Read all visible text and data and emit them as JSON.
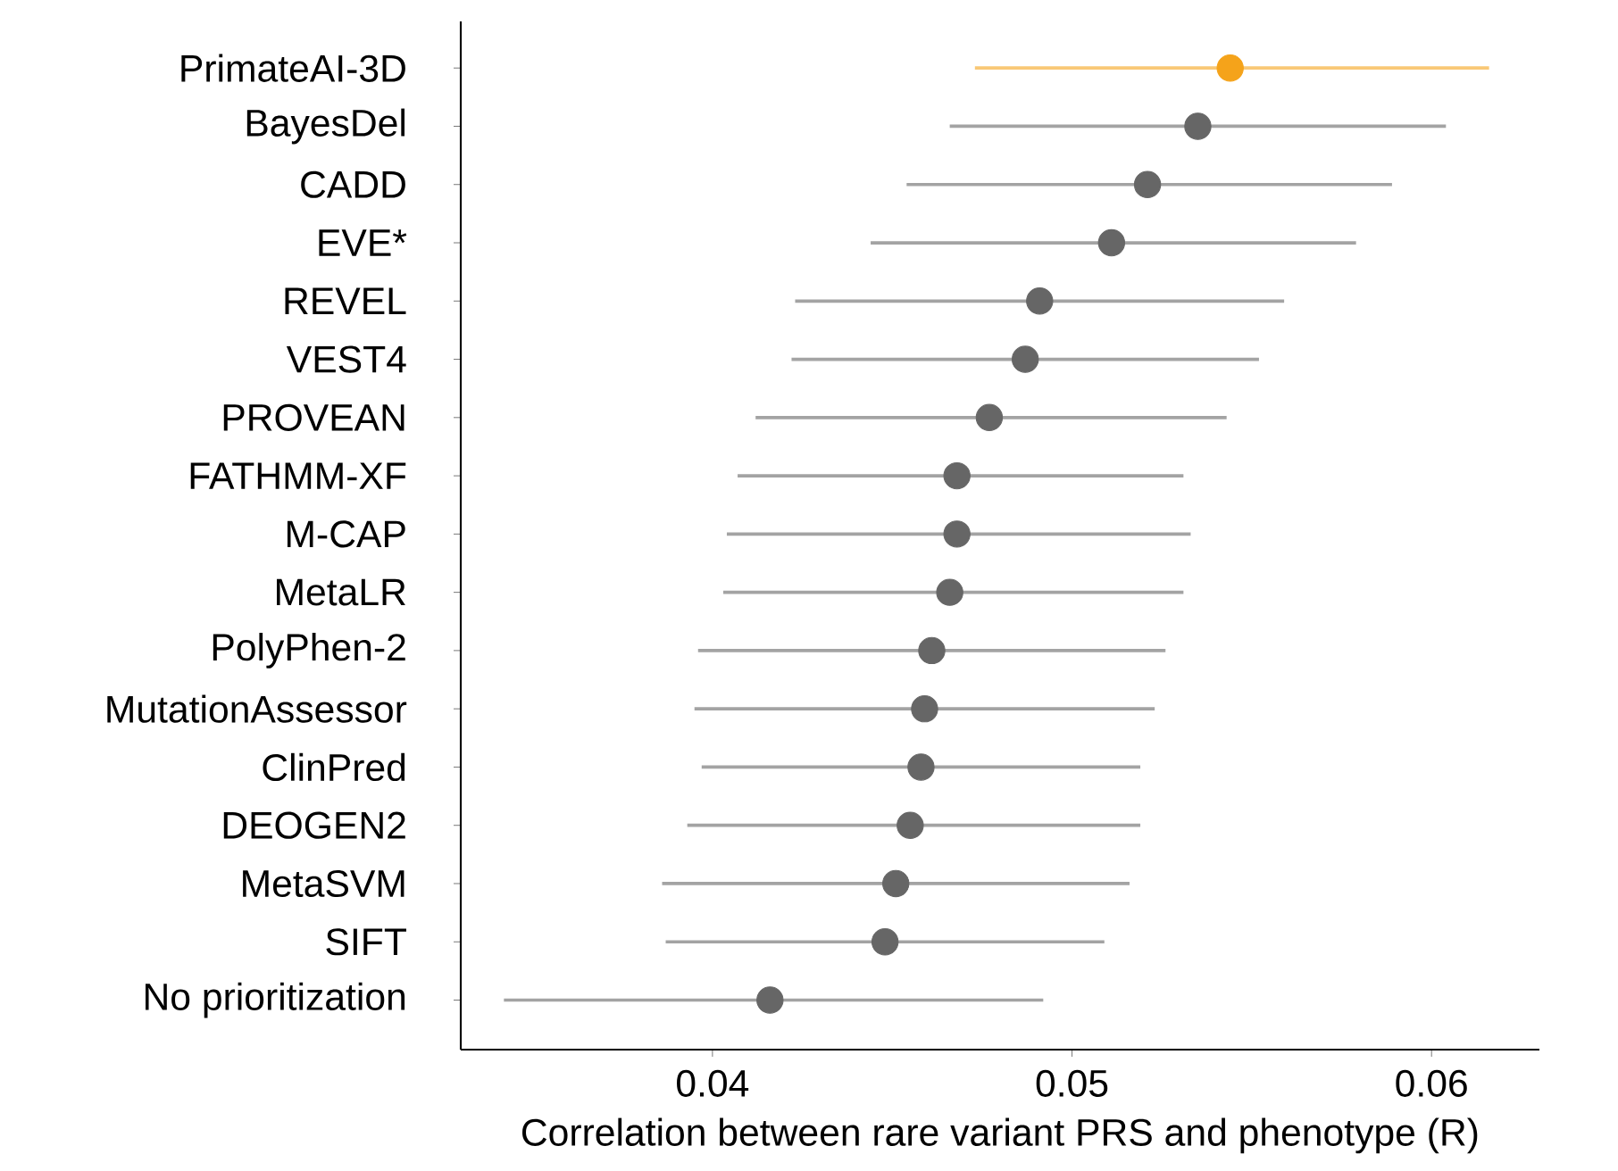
{
  "chart_data": {
    "type": "scatter",
    "orientation": "horizontal",
    "xlabel": "Correlation between rare variant PRS and phenotype (R)",
    "categories": [
      "PrimateAI-3D",
      "BayesDel",
      "CADD",
      "EVE*",
      "REVEL",
      "VEST4",
      "PROVEAN",
      "FATHMM-XF",
      "M-CAP",
      "MetaLR",
      "PolyPhen-2",
      "MutationAssessor",
      "ClinPred",
      "DEOGEN2",
      "MetaSVM",
      "SIFT",
      "No prioritization"
    ],
    "values": [
      0.0544,
      0.0535,
      0.0521,
      0.0511,
      0.0491,
      0.0487,
      0.0477,
      0.0468,
      0.0468,
      0.0466,
      0.0461,
      0.0459,
      0.0458,
      0.0455,
      0.0451,
      0.0448,
      0.0416
    ],
    "errors": [
      [
        0.0473,
        0.0616
      ],
      [
        0.0466,
        0.0604
      ],
      [
        0.0454,
        0.0589
      ],
      [
        0.0444,
        0.0579
      ],
      [
        0.0423,
        0.0559
      ],
      [
        0.0422,
        0.0552
      ],
      [
        0.0412,
        0.0543
      ],
      [
        0.0407,
        0.0531
      ],
      [
        0.0404,
        0.0533
      ],
      [
        0.0403,
        0.0531
      ],
      [
        0.0396,
        0.0526
      ],
      [
        0.0395,
        0.0523
      ],
      [
        0.0397,
        0.0519
      ],
      [
        0.0393,
        0.0519
      ],
      [
        0.0386,
        0.0516
      ],
      [
        0.0387,
        0.0509
      ],
      [
        0.0342,
        0.0492
      ]
    ],
    "colors": [
      "#f5a31a",
      "#666666",
      "#666666",
      "#666666",
      "#666666",
      "#666666",
      "#666666",
      "#666666",
      "#666666",
      "#666666",
      "#666666",
      "#666666",
      "#666666",
      "#666666",
      "#666666",
      "#666666",
      "#666666"
    ],
    "xlim": [
      0.033,
      0.063
    ],
    "xticks": [
      0.04,
      0.05,
      0.06
    ],
    "marker": "circle",
    "grid": false
  }
}
